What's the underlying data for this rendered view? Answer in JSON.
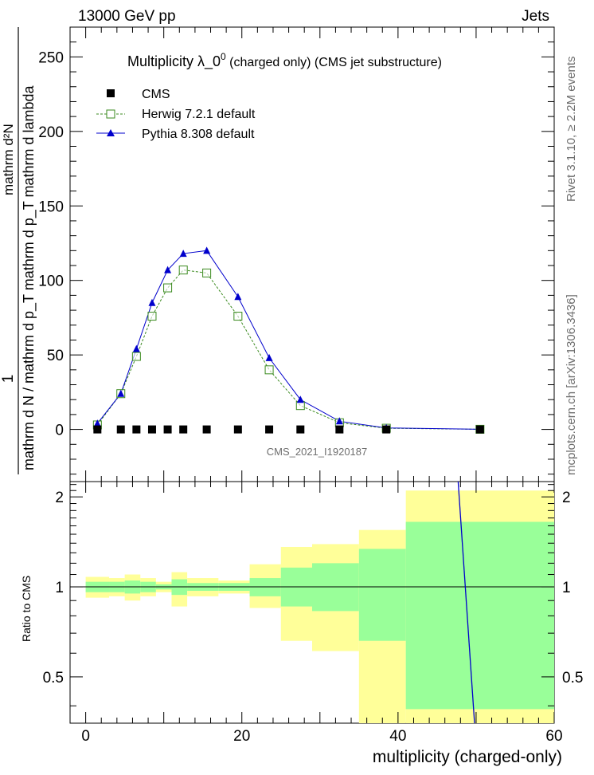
{
  "header": {
    "left": "13000 GeV pp",
    "right": "Jets"
  },
  "side": {
    "rivet": "Rivet 3.1.10, ≥ 2.2M events",
    "mcplots": "mcplots.cern.ch [arXiv:1306.3436]"
  },
  "chart_data": {
    "type": "line",
    "title_main": "Multiplicity  λ_0",
    "title_sup": "0",
    "title_rest": " (charged only) (CMS jet substructure)",
    "watermark": "CMS_2021_I1920187",
    "xlabel": "multiplicity (charged-only)",
    "ylabel_num": "1",
    "ylabel_den": "mathrm d N / mathrm d p_T mathrm d p_T mathrm d lambda",
    "ylabel_top": "mathrm d²N",
    "ratio_ylabel": "Ratio to CMS",
    "xlim": [
      -2,
      60
    ],
    "ylim": [
      -35,
      270
    ],
    "ratio_ylim": [
      0.35,
      2.25
    ],
    "x_ticks": [
      "0",
      "20",
      "40",
      "60"
    ],
    "y_ticks": [
      "0",
      "50",
      "100",
      "150",
      "200",
      "250"
    ],
    "ratio_ticks_left": [
      "0.5",
      "1",
      "2"
    ],
    "ratio_ticks_right": [
      "0.5",
      "1",
      "2"
    ],
    "legend": [
      {
        "name": "CMS",
        "marker": "filled-square",
        "color": "#000000"
      },
      {
        "name": "Herwig 7.2.1 default",
        "marker": "open-square",
        "color": "#3a8a1e"
      },
      {
        "name": "Pythia 8.308 default",
        "marker": "triangle",
        "color": "#0000cc"
      }
    ],
    "cms": {
      "x": [
        1.5,
        4.5,
        6.5,
        8.5,
        10.5,
        12.5,
        15.5,
        19.5,
        23.5,
        27.5,
        32.5,
        38.5,
        50.5
      ],
      "y": [
        0,
        0,
        0,
        0,
        0,
        0,
        0,
        0,
        0,
        0,
        0,
        0,
        0
      ]
    },
    "herwig": {
      "x": [
        1.5,
        4.5,
        6.5,
        8.5,
        10.5,
        12.5,
        15.5,
        19.5,
        23.5,
        27.5,
        32.5,
        38.5,
        50.5
      ],
      "y": [
        3,
        24,
        49,
        76,
        95,
        107,
        105,
        76,
        40,
        16,
        4.5,
        0.8,
        0.1
      ]
    },
    "pythia": {
      "x": [
        1.5,
        4.5,
        6.5,
        8.5,
        10.5,
        12.5,
        15.5,
        19.5,
        23.5,
        27.5,
        32.5,
        38.5,
        50.5
      ],
      "y": [
        4,
        24,
        54,
        85,
        107,
        118,
        120,
        89,
        48,
        20,
        5.5,
        1.0,
        0.1
      ]
    },
    "ratio_bands": [
      {
        "x0": 0,
        "x1": 3,
        "y_lo": 0.92,
        "y_hi": 1.08,
        "g_lo": 0.96,
        "g_hi": 1.04
      },
      {
        "x0": 3,
        "x1": 5,
        "y_lo": 0.93,
        "y_hi": 1.07,
        "g_lo": 0.96,
        "g_hi": 1.04
      },
      {
        "x0": 5,
        "x1": 7,
        "y_lo": 0.9,
        "y_hi": 1.1,
        "g_lo": 0.95,
        "g_hi": 1.05
      },
      {
        "x0": 7,
        "x1": 9,
        "y_lo": 0.93,
        "y_hi": 1.07,
        "g_lo": 0.96,
        "g_hi": 1.04
      },
      {
        "x0": 9,
        "x1": 11,
        "y_lo": 0.96,
        "y_hi": 1.04,
        "g_lo": 0.98,
        "g_hi": 1.02
      },
      {
        "x0": 11,
        "x1": 13,
        "y_lo": 0.86,
        "y_hi": 1.12,
        "g_lo": 0.94,
        "g_hi": 1.06
      },
      {
        "x0": 13,
        "x1": 17,
        "y_lo": 0.93,
        "y_hi": 1.07,
        "g_lo": 0.97,
        "g_hi": 1.03
      },
      {
        "x0": 17,
        "x1": 21,
        "y_lo": 0.95,
        "y_hi": 1.05,
        "g_lo": 0.97,
        "g_hi": 1.03
      },
      {
        "x0": 21,
        "x1": 25,
        "y_lo": 0.85,
        "y_hi": 1.19,
        "g_lo": 0.93,
        "g_hi": 1.07
      },
      {
        "x0": 25,
        "x1": 29,
        "y_lo": 0.66,
        "y_hi": 1.36,
        "g_lo": 0.86,
        "g_hi": 1.16
      },
      {
        "x0": 29,
        "x1": 35,
        "y_lo": 0.61,
        "y_hi": 1.39,
        "g_lo": 0.83,
        "g_hi": 1.2
      },
      {
        "x0": 35,
        "x1": 41,
        "y_lo": 0.35,
        "y_hi": 1.55,
        "g_lo": 0.66,
        "g_hi": 1.34
      },
      {
        "x0": 41,
        "x1": 60,
        "y_lo": 0.35,
        "y_hi": 2.1,
        "g_lo": 0.39,
        "g_hi": 1.65
      }
    ],
    "ratio_pythia_line": {
      "x": [
        47.7,
        49.8
      ],
      "y": [
        2.4,
        0.32
      ]
    }
  }
}
